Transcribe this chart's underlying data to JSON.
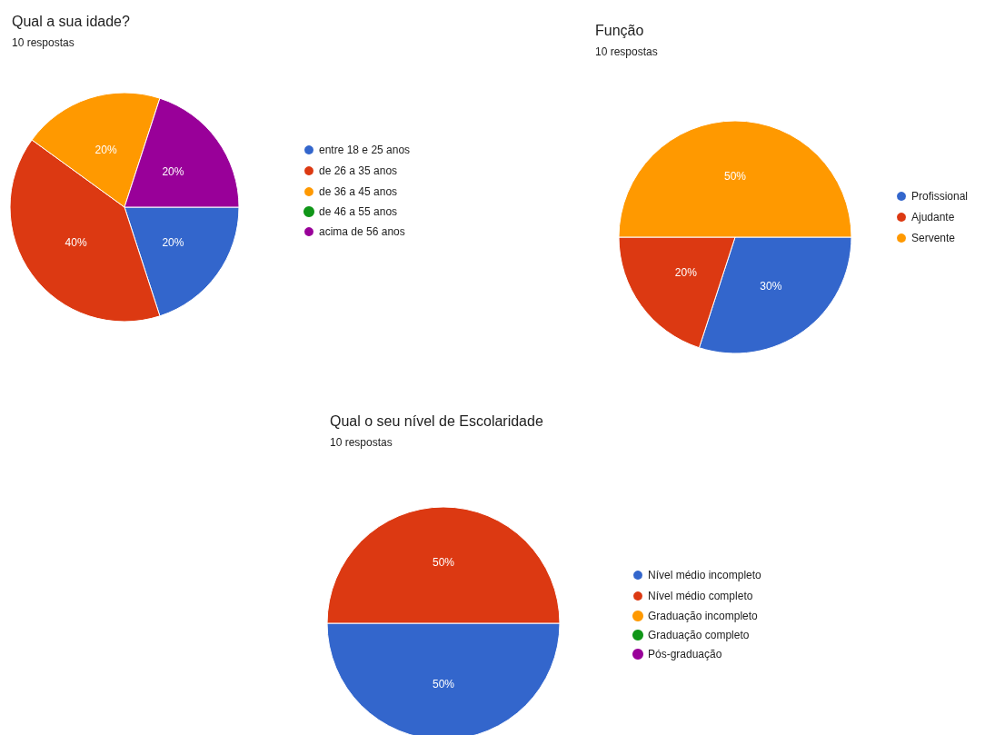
{
  "chart_data": [
    {
      "type": "pie",
      "title": "Qual a sua idade?",
      "subtitle": "10 respostas",
      "categories": [
        "entre 18 e 25 anos",
        "de 26 a 35 anos",
        "de 36 a 45 anos",
        "de 46 a 55 anos",
        "acima de 56 anos"
      ],
      "values": [
        20,
        40,
        20,
        0,
        20
      ],
      "colors": [
        "#3366cc",
        "#dc3912",
        "#ff9900",
        "#109618",
        "#990099"
      ],
      "value_labels": [
        "20%",
        "40%",
        "20%",
        null,
        "20%"
      ],
      "legend": "right"
    },
    {
      "type": "pie",
      "title": "Função",
      "subtitle": "10 respostas",
      "categories": [
        "Profissional",
        "Ajudante",
        "Servente"
      ],
      "values": [
        30,
        20,
        50
      ],
      "colors": [
        "#3366cc",
        "#dc3912",
        "#ff9900"
      ],
      "value_labels": [
        "30%",
        "20%",
        "50%"
      ],
      "legend": "right"
    },
    {
      "type": "pie",
      "title": "Qual o seu nível de Escolaridade",
      "subtitle": "10 respostas",
      "categories": [
        "Nível médio incompleto",
        "Nível médio completo",
        "Graduação incompleto",
        "Graduação completo",
        "Pós-graduação"
      ],
      "values": [
        50,
        50,
        0,
        0,
        0
      ],
      "colors": [
        "#3366cc",
        "#dc3912",
        "#ff9900",
        "#109618",
        "#990099"
      ],
      "value_labels": [
        "50%",
        "50%",
        null,
        null,
        null
      ],
      "legend": "right"
    }
  ]
}
